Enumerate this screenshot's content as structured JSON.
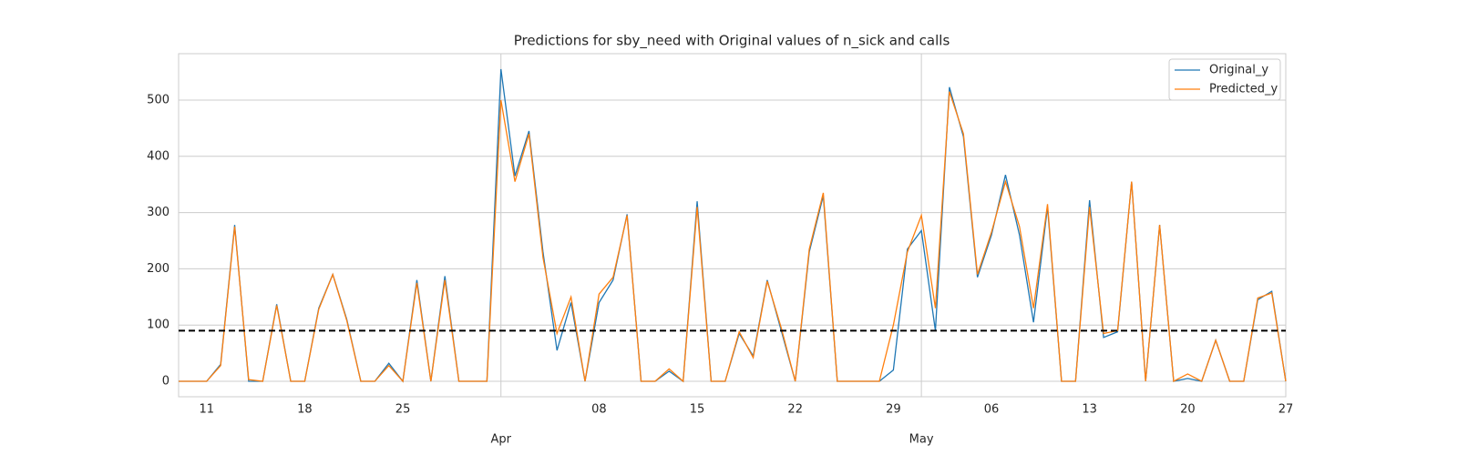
{
  "chart_data": {
    "type": "line",
    "title": "Predictions for sby_need with Original values of n_sick and calls",
    "x": [
      "03-09",
      "03-10",
      "03-11",
      "03-12",
      "03-13",
      "03-14",
      "03-15",
      "03-16",
      "03-17",
      "03-18",
      "03-19",
      "03-20",
      "03-21",
      "03-22",
      "03-23",
      "03-24",
      "03-25",
      "03-26",
      "03-27",
      "03-28",
      "03-29",
      "03-30",
      "03-31",
      "04-01",
      "04-02",
      "04-03",
      "04-04",
      "04-05",
      "04-06",
      "04-07",
      "04-08",
      "04-09",
      "04-10",
      "04-11",
      "04-12",
      "04-13",
      "04-14",
      "04-15",
      "04-16",
      "04-17",
      "04-18",
      "04-19",
      "04-20",
      "04-21",
      "04-22",
      "04-23",
      "04-24",
      "04-25",
      "04-26",
      "04-27",
      "04-28",
      "04-29",
      "04-30",
      "05-01",
      "05-02",
      "05-03",
      "05-04",
      "05-05",
      "05-06",
      "05-07",
      "05-08",
      "05-09",
      "05-10",
      "05-11",
      "05-12",
      "05-13",
      "05-14",
      "05-15",
      "05-16",
      "05-17",
      "05-18",
      "05-19",
      "05-20",
      "05-21",
      "05-22",
      "05-23",
      "05-24",
      "05-25",
      "05-26",
      "05-27"
    ],
    "series": [
      {
        "name": "Original_y",
        "color": "#1f77b4",
        "values": [
          0,
          0,
          0,
          30,
          278,
          0,
          0,
          137,
          0,
          0,
          130,
          190,
          110,
          0,
          0,
          32,
          0,
          180,
          0,
          187,
          0,
          0,
          0,
          555,
          365,
          445,
          230,
          55,
          140,
          0,
          140,
          180,
          297,
          0,
          0,
          18,
          0,
          320,
          0,
          0,
          85,
          45,
          180,
          90,
          0,
          230,
          330,
          0,
          0,
          0,
          0,
          20,
          235,
          268,
          90,
          523,
          435,
          185,
          260,
          367,
          260,
          105,
          310,
          0,
          0,
          322,
          78,
          88,
          355,
          0,
          278,
          0,
          5,
          0,
          73,
          0,
          0,
          145,
          160,
          0
        ]
      },
      {
        "name": "Predicted_y",
        "color": "#ff7f0e",
        "values": [
          0,
          0,
          0,
          28,
          275,
          3,
          0,
          135,
          0,
          0,
          128,
          190,
          108,
          0,
          0,
          28,
          0,
          175,
          0,
          180,
          0,
          0,
          0,
          500,
          355,
          440,
          220,
          85,
          150,
          0,
          155,
          185,
          295,
          0,
          0,
          22,
          0,
          310,
          0,
          0,
          88,
          42,
          178,
          95,
          0,
          235,
          335,
          0,
          0,
          0,
          0,
          100,
          230,
          295,
          130,
          515,
          440,
          190,
          265,
          355,
          275,
          130,
          315,
          0,
          0,
          310,
          85,
          90,
          355,
          0,
          278,
          0,
          13,
          0,
          73,
          0,
          0,
          148,
          157,
          0
        ]
      }
    ],
    "hline": 90,
    "xlim": [
      "03-09",
      "05-27"
    ],
    "xticks": [
      {
        "value": "03-11",
        "label": "11"
      },
      {
        "value": "03-18",
        "label": "18"
      },
      {
        "value": "03-25",
        "label": "25"
      },
      {
        "value": "04-08",
        "label": "08"
      },
      {
        "value": "04-15",
        "label": "15"
      },
      {
        "value": "04-22",
        "label": "22"
      },
      {
        "value": "04-29",
        "label": "29"
      },
      {
        "value": "05-06",
        "label": "06"
      },
      {
        "value": "05-13",
        "label": "13"
      },
      {
        "value": "05-20",
        "label": "20"
      },
      {
        "value": "05-27",
        "label": "27"
      }
    ],
    "xticks_major": [
      {
        "value": "04-01",
        "label": "Apr"
      },
      {
        "value": "05-01",
        "label": "May"
      }
    ],
    "ylim": [
      -27.5,
      582.5
    ],
    "yticks": [
      0,
      100,
      200,
      300,
      400,
      500
    ],
    "grid": true,
    "legend": "upper right"
  }
}
